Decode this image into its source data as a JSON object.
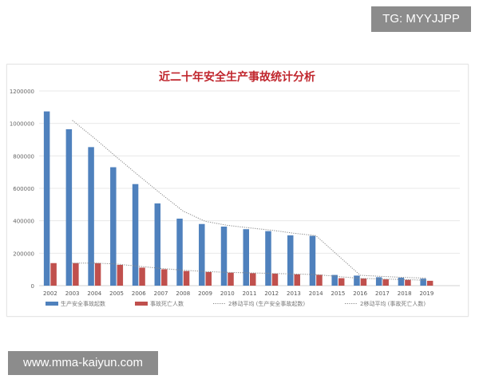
{
  "watermarks": {
    "top": "TG: MYYJJPP",
    "bottom": "www.mma-kaiyun.com"
  },
  "chart_data": {
    "type": "bar",
    "title": "近二十年安全生产事故统计分析",
    "categories": [
      "2002",
      "2003",
      "2004",
      "2005",
      "2006",
      "2007",
      "2008",
      "2009",
      "2010",
      "2011",
      "2012",
      "2013",
      "2014",
      "2015",
      "2016",
      "2017",
      "2018",
      "2019"
    ],
    "series": [
      {
        "name": "生产安全事故起数",
        "color": "#4f81bd",
        "values": [
          1074000,
          964000,
          854000,
          730000,
          626000,
          507000,
          413000,
          380000,
          364000,
          348000,
          336000,
          310000,
          307000,
          66000,
          62000,
          52000,
          49000,
          43000
        ]
      },
      {
        "name": "事故死亡人数",
        "color": "#c0504d",
        "values": [
          139000,
          139000,
          139000,
          128000,
          111000,
          101000,
          90000,
          84000,
          80000,
          77000,
          74000,
          70000,
          67000,
          46000,
          44000,
          39000,
          36000,
          30000
        ]
      }
    ],
    "trendlines": [
      {
        "name": "2移动平均 (生产安全事故起数)",
        "of_series": 0,
        "period": 2,
        "style": "dotted"
      },
      {
        "name": "2移动平均 (事故死亡人数)",
        "of_series": 1,
        "period": 2,
        "style": "dotted"
      }
    ],
    "ylim": [
      0,
      1200000
    ],
    "yticks": [
      "0",
      "200000",
      "400000",
      "600000",
      "800000",
      "1000000",
      "1200000"
    ],
    "grid": true,
    "legend": "bottom"
  }
}
